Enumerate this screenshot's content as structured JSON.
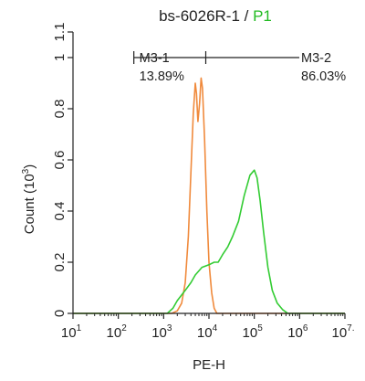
{
  "chart_data": {
    "type": "line",
    "title": {
      "sample": "bs-6026R-1",
      "separator": " / ",
      "population": "P1"
    },
    "xlabel": "PE-H",
    "ylabel": "Count (10",
    "ylabel_exp": "3",
    "ylabel_close": ")",
    "x_scale": "log",
    "xlim": [
      10,
      10000000
    ],
    "ylim": [
      0,
      1.1
    ],
    "x_ticks": [
      {
        "base": "10",
        "exp": "1",
        "value": 10
      },
      {
        "base": "10",
        "exp": "2",
        "value": 100
      },
      {
        "base": "10",
        "exp": "3",
        "value": 1000
      },
      {
        "base": "10",
        "exp": "4",
        "value": 10000
      },
      {
        "base": "10",
        "exp": "5",
        "value": 100000
      },
      {
        "base": "10",
        "exp": "6",
        "value": 1000000
      },
      {
        "base": "10",
        "exp": "7.",
        "value": 10000000
      }
    ],
    "y_ticks": [
      {
        "label": "0",
        "value": 0
      },
      {
        "label": "0.2",
        "value": 0.2
      },
      {
        "label": "0.4",
        "value": 0.4
      },
      {
        "label": "0.6",
        "value": 0.6
      },
      {
        "label": "0.8",
        "value": 0.8
      },
      {
        "label": "1",
        "value": 1.0
      },
      {
        "label": "1.1",
        "value": 1.1
      }
    ],
    "grid": false,
    "series": [
      {
        "color": "#f08a3c",
        "points": [
          [
            10,
            0
          ],
          [
            1500,
            0
          ],
          [
            2000,
            0.01
          ],
          [
            2500,
            0.04
          ],
          [
            3000,
            0.12
          ],
          [
            3500,
            0.3
          ],
          [
            4000,
            0.55
          ],
          [
            4500,
            0.78
          ],
          [
            5000,
            0.9
          ],
          [
            5300,
            0.86
          ],
          [
            5700,
            0.75
          ],
          [
            6200,
            0.82
          ],
          [
            6700,
            0.92
          ],
          [
            7200,
            0.88
          ],
          [
            8000,
            0.68
          ],
          [
            9000,
            0.4
          ],
          [
            10000,
            0.2
          ],
          [
            11500,
            0.08
          ],
          [
            13000,
            0.02
          ],
          [
            15000,
            0
          ],
          [
            10000000,
            0
          ]
        ]
      },
      {
        "color": "#33cc33",
        "points": [
          [
            10,
            0
          ],
          [
            1200,
            0
          ],
          [
            1600,
            0.02
          ],
          [
            2000,
            0.05
          ],
          [
            3000,
            0.09
          ],
          [
            4000,
            0.12
          ],
          [
            5000,
            0.15
          ],
          [
            7000,
            0.18
          ],
          [
            10000,
            0.19
          ],
          [
            13000,
            0.2
          ],
          [
            16000,
            0.2
          ],
          [
            20000,
            0.23
          ],
          [
            26000,
            0.26
          ],
          [
            33000,
            0.3
          ],
          [
            45000,
            0.36
          ],
          [
            60000,
            0.46
          ],
          [
            80000,
            0.54
          ],
          [
            100000,
            0.56
          ],
          [
            115000,
            0.53
          ],
          [
            135000,
            0.44
          ],
          [
            160000,
            0.32
          ],
          [
            200000,
            0.18
          ],
          [
            250000,
            0.09
          ],
          [
            320000,
            0.04
          ],
          [
            420000,
            0.015
          ],
          [
            550000,
            0
          ],
          [
            10000000,
            0
          ]
        ]
      }
    ],
    "gates": [
      {
        "name": "M3-1",
        "percent": "13.89%",
        "x_start": 220,
        "x_end": 8500,
        "y": 1.0
      },
      {
        "name": "M3-2",
        "percent": "86.03%",
        "x_start": 8500,
        "x_end": 10000000,
        "y": 1.0
      }
    ],
    "colors": {
      "axis": "#222222",
      "title_text": "#222222",
      "title_population": "#22bb22",
      "gate_line": "#222222"
    }
  }
}
